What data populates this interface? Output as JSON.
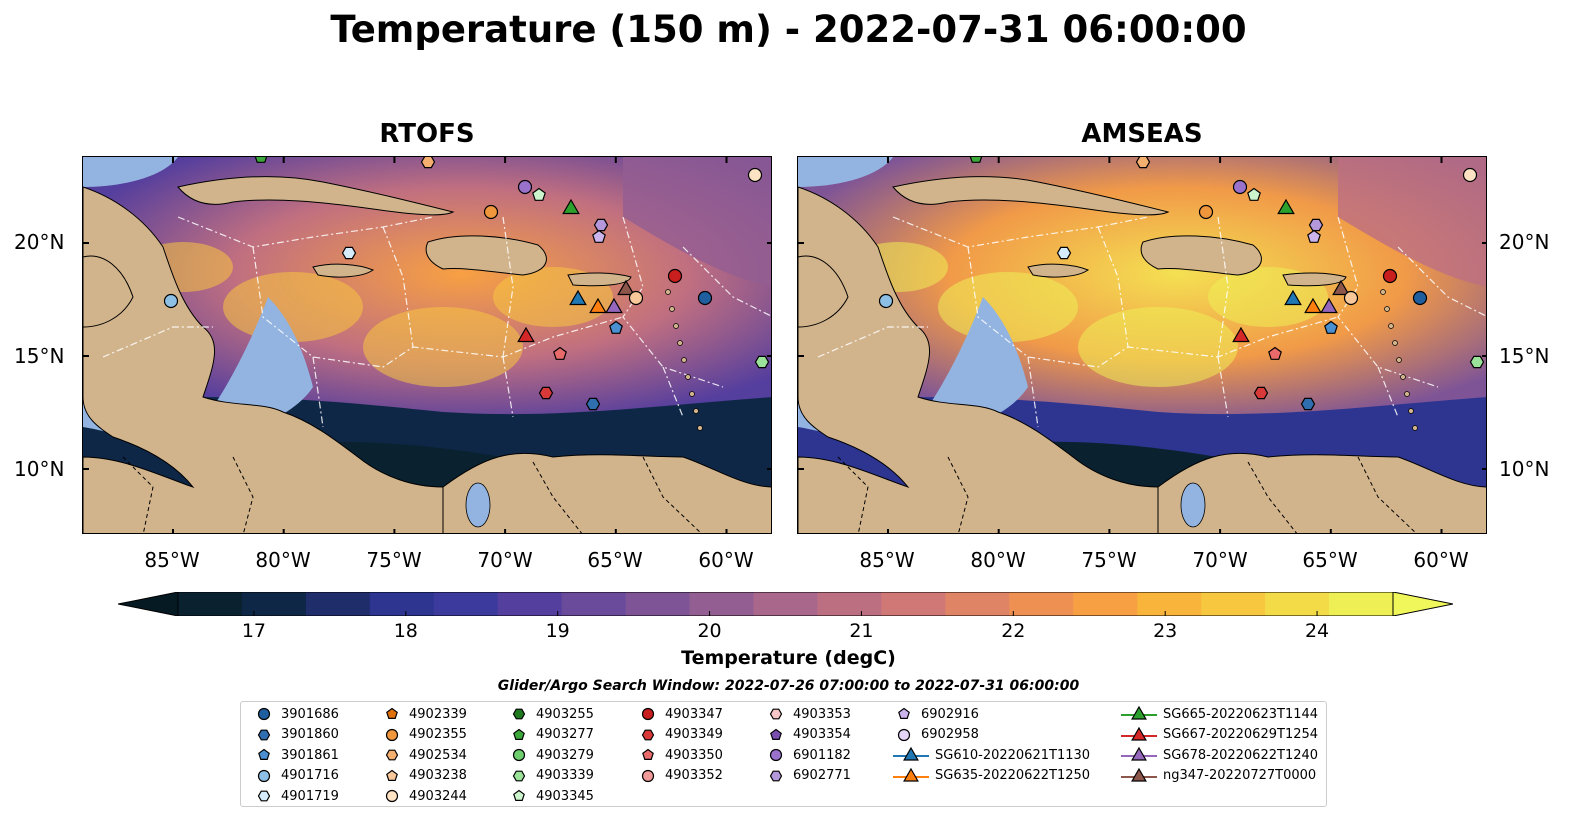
{
  "title": "Temperature (150 m) - 2022-07-31 06:00:00",
  "panels": [
    {
      "title": "RTOFS",
      "model": "rtofs"
    },
    {
      "title": "AMSEAS",
      "model": "amseas"
    }
  ],
  "lat_labels": [
    "20°N",
    "15°N",
    "10°N"
  ],
  "lon_labels": [
    "85°W",
    "80°W",
    "75°W",
    "70°W",
    "65°W",
    "60°W"
  ],
  "colorbar": {
    "label": "Temperature (degC)",
    "ticks": [
      "17",
      "18",
      "19",
      "20",
      "21",
      "22",
      "23",
      "24"
    ],
    "min": 16.5,
    "max": 24.5,
    "colors": [
      "#0a2230",
      "#0f2747",
      "#1f2d6b",
      "#2d3590",
      "#3d3a9e",
      "#543e9e",
      "#6a4a9b",
      "#7e5496",
      "#935e92",
      "#a9678c",
      "#bd6f82",
      "#cf7876",
      "#e08466",
      "#ee9052",
      "#f7a043",
      "#f9b43c",
      "#f7c73f",
      "#f3db48",
      "#eeee55"
    ],
    "low_color": "#061a24",
    "high_color": "#f0f75b"
  },
  "legend": {
    "title": "Glider/Argo Search Window: 2022-07-26 07:00:00 to 2022-07-31 06:00:00",
    "columns": [
      [
        {
          "label": "3901686",
          "marker": "circle",
          "color": "#1f5fa0"
        },
        {
          "label": "3901860",
          "marker": "hexagon",
          "color": "#2f6fb0"
        },
        {
          "label": "3901861",
          "marker": "pentagon",
          "color": "#4a8fd0"
        },
        {
          "label": "4901716",
          "marker": "circle",
          "color": "#8ec0e6"
        },
        {
          "label": "4901719",
          "marker": "hexagon",
          "color": "#d6ecfa"
        }
      ],
      [
        {
          "label": "4902339",
          "marker": "pentagon",
          "color": "#e0700a"
        },
        {
          "label": "4902355",
          "marker": "circle",
          "color": "#f0963c"
        },
        {
          "label": "4902534",
          "marker": "hexagon",
          "color": "#f5b070"
        },
        {
          "label": "4903238",
          "marker": "pentagon",
          "color": "#f8c89a"
        },
        {
          "label": "4903244",
          "marker": "circle",
          "color": "#fde2c4"
        }
      ],
      [
        {
          "label": "4903255",
          "marker": "hexagon",
          "color": "#1f7a1f"
        },
        {
          "label": "4903277",
          "marker": "pentagon",
          "color": "#3ca83c"
        },
        {
          "label": "4903279",
          "marker": "circle",
          "color": "#6fcf6f"
        },
        {
          "label": "4903339",
          "marker": "hexagon",
          "color": "#9be29b"
        },
        {
          "label": "4903345",
          "marker": "pentagon",
          "color": "#cdf5cd"
        }
      ],
      [
        {
          "label": "4903347",
          "marker": "circle",
          "color": "#c81e1e"
        },
        {
          "label": "4903349",
          "marker": "hexagon",
          "color": "#d83a3a"
        },
        {
          "label": "4903350",
          "marker": "pentagon",
          "color": "#e86a6a"
        },
        {
          "label": "4903352",
          "marker": "circle",
          "color": "#f29a9a"
        }
      ],
      [
        {
          "label": "4903353",
          "marker": "hexagon",
          "color": "#f8c6c6"
        },
        {
          "label": "4903354",
          "marker": "pentagon",
          "color": "#7a4fb0"
        },
        {
          "label": "6901182",
          "marker": "circle",
          "color": "#9a72cc"
        },
        {
          "label": "6902771",
          "marker": "hexagon",
          "color": "#b597dc"
        }
      ],
      [
        {
          "label": "6902916",
          "marker": "pentagon",
          "color": "#ccb4ec"
        },
        {
          "label": "6902958",
          "marker": "circle",
          "color": "#e4d4f8"
        },
        {
          "label": "SG610-20220621T1130",
          "marker": "triangle",
          "color": "#1f77b4",
          "line": true
        },
        {
          "label": "SG635-20220622T1250",
          "marker": "triangle",
          "color": "#ff7f0e",
          "line": true
        }
      ],
      [
        {
          "label": "SG665-20220623T1144",
          "marker": "triangle",
          "color": "#2ca02c",
          "line": true
        },
        {
          "label": "SG667-20220629T1254",
          "marker": "triangle",
          "color": "#d62728",
          "line": true
        },
        {
          "label": "SG678-20220622T1240",
          "marker": "triangle",
          "color": "#9467bd",
          "line": true
        },
        {
          "label": "ng347-20220727T0000",
          "marker": "triangle",
          "color": "#8c564b",
          "line": true
        }
      ]
    ]
  }
}
